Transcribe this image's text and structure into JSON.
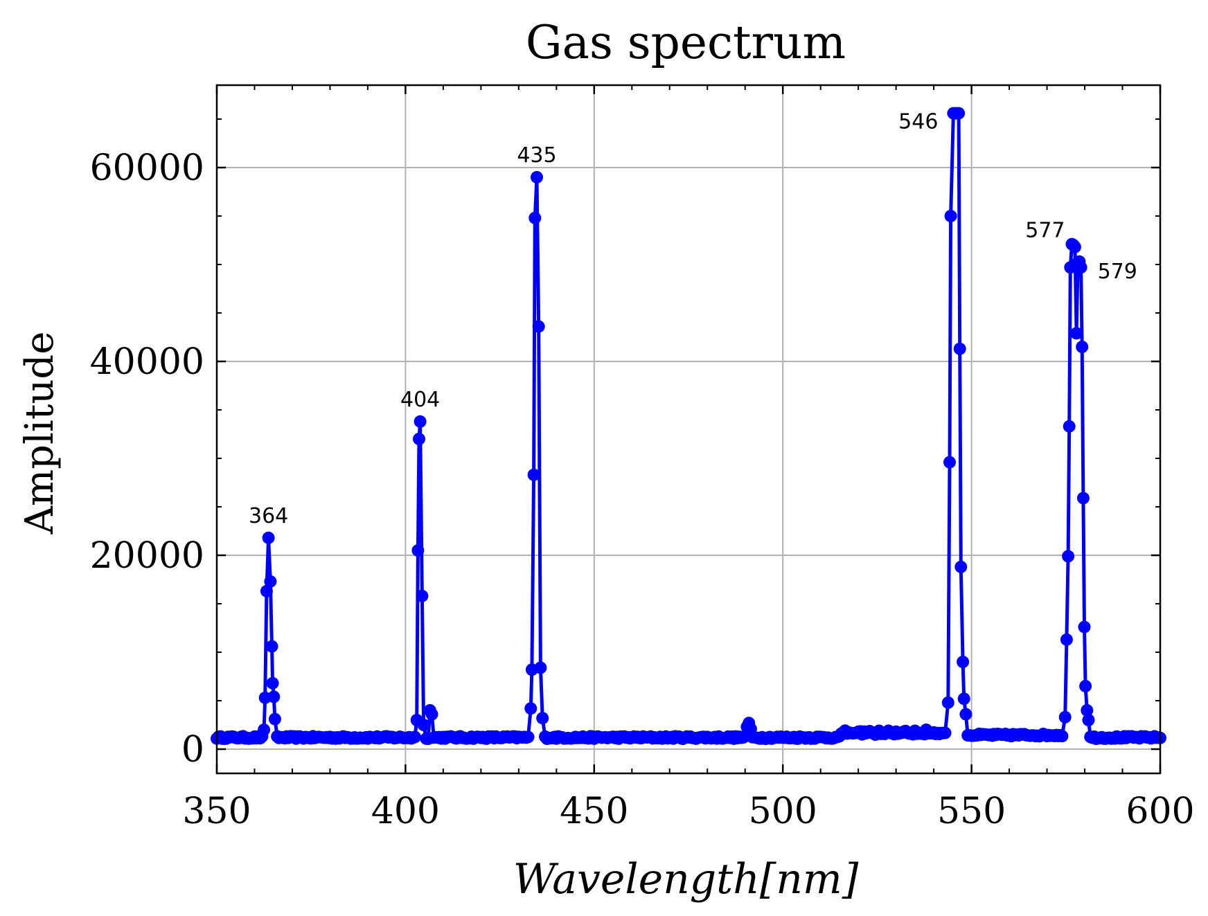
{
  "chart_data": {
    "type": "line",
    "title": "Gas spectrum",
    "xlabel": "Wavelength[nm]",
    "ylabel": "Amplitude",
    "xlim": [
      350,
      600
    ],
    "ylim": [
      -2500,
      68500
    ],
    "xticks": [
      350,
      400,
      450,
      500,
      550,
      600
    ],
    "yticks": [
      0,
      20000,
      40000,
      60000
    ],
    "xtick_labels": [
      "350",
      "400",
      "450",
      "500",
      "550",
      "600"
    ],
    "ytick_labels": [
      "0",
      "20000",
      "40000",
      "60000"
    ],
    "grid": true,
    "line_color": "#0000ff",
    "marker": "circle",
    "baseline": 1200,
    "series": [
      {
        "peaks": [
          {
            "x": 362.5,
            "y": 2000
          },
          {
            "x": 362.8,
            "y": 5300
          },
          {
            "x": 363.2,
            "y": 16300
          },
          {
            "x": 363.7,
            "y": 21800
          },
          {
            "x": 364.2,
            "y": 17300
          },
          {
            "x": 364.6,
            "y": 10600
          },
          {
            "x": 364.8,
            "y": 6800
          },
          {
            "x": 365.1,
            "y": 5400
          },
          {
            "x": 365.4,
            "y": 3100
          },
          {
            "x": 403.0,
            "y": 3000
          },
          {
            "x": 403.3,
            "y": 20500
          },
          {
            "x": 403.6,
            "y": 32000
          },
          {
            "x": 403.9,
            "y": 33800
          },
          {
            "x": 404.4,
            "y": 15800
          },
          {
            "x": 404.8,
            "y": 2500
          },
          {
            "x": 406.5,
            "y": 4000
          },
          {
            "x": 407.0,
            "y": 3600
          },
          {
            "x": 433.2,
            "y": 4200
          },
          {
            "x": 433.5,
            "y": 8200
          },
          {
            "x": 434.0,
            "y": 28300
          },
          {
            "x": 434.3,
            "y": 54800
          },
          {
            "x": 434.8,
            "y": 59000
          },
          {
            "x": 435.3,
            "y": 43600
          },
          {
            "x": 435.8,
            "y": 8400
          },
          {
            "x": 436.3,
            "y": 3200
          },
          {
            "x": 490.5,
            "y": 2300
          },
          {
            "x": 491.0,
            "y": 2700
          },
          {
            "x": 491.5,
            "y": 2100
          },
          {
            "x": 520.0,
            "y": 1800
          },
          {
            "x": 528.0,
            "y": 1900
          },
          {
            "x": 532.0,
            "y": 1800
          },
          {
            "x": 538.0,
            "y": 2000
          },
          {
            "x": 543.8,
            "y": 4800
          },
          {
            "x": 544.2,
            "y": 29600
          },
          {
            "x": 544.5,
            "y": 55000
          },
          {
            "x": 545.2,
            "y": 65600
          },
          {
            "x": 545.9,
            "y": 65600
          },
          {
            "x": 546.6,
            "y": 65600
          },
          {
            "x": 546.9,
            "y": 41300
          },
          {
            "x": 547.2,
            "y": 18800
          },
          {
            "x": 547.7,
            "y": 9000
          },
          {
            "x": 548.0,
            "y": 5200
          },
          {
            "x": 548.5,
            "y": 3600
          },
          {
            "x": 574.8,
            "y": 3300
          },
          {
            "x": 575.2,
            "y": 11300
          },
          {
            "x": 575.6,
            "y": 19900
          },
          {
            "x": 575.9,
            "y": 33300
          },
          {
            "x": 576.2,
            "y": 49700
          },
          {
            "x": 576.6,
            "y": 52100
          },
          {
            "x": 577.0,
            "y": 52000
          },
          {
            "x": 577.4,
            "y": 51800
          },
          {
            "x": 577.8,
            "y": 42900
          },
          {
            "x": 578.2,
            "y": 50200
          },
          {
            "x": 578.6,
            "y": 50300
          },
          {
            "x": 579.0,
            "y": 49700
          },
          {
            "x": 579.3,
            "y": 41500
          },
          {
            "x": 579.6,
            "y": 25900
          },
          {
            "x": 579.9,
            "y": 12600
          },
          {
            "x": 580.2,
            "y": 6500
          },
          {
            "x": 580.6,
            "y": 4000
          },
          {
            "x": 581.0,
            "y": 3000
          }
        ]
      }
    ],
    "annotations": [
      {
        "text": "364",
        "x": 363.7,
        "y": 21800,
        "anchor": "above"
      },
      {
        "text": "404",
        "x": 403.9,
        "y": 33800,
        "anchor": "above"
      },
      {
        "text": "435",
        "x": 434.8,
        "y": 59000,
        "anchor": "above"
      },
      {
        "text": "546",
        "x": 545.2,
        "y": 65600,
        "anchor": "left"
      },
      {
        "text": "577",
        "x": 576.6,
        "y": 52100,
        "anchor": "upper-left"
      },
      {
        "text": "579",
        "x": 579.0,
        "y": 49700,
        "anchor": "right"
      }
    ]
  }
}
